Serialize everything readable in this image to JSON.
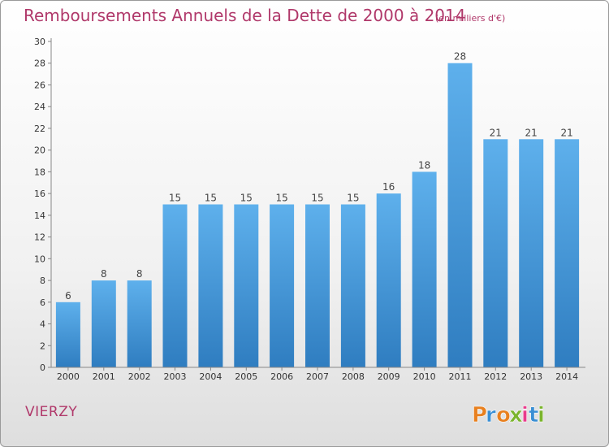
{
  "header": {
    "title": "Remboursements Annuels de la Dette de 2000 à 2014",
    "subtitle": "(en milliers d'€)"
  },
  "footer": {
    "place": "VIERZY",
    "brand": "Proxiti"
  },
  "colors": {
    "title": "#b0386a",
    "bar_top": "#5eb0ec",
    "bar_bottom": "#2f7dc0",
    "brand_letters": [
      "#e8801f",
      "#3a8fd4",
      "#e8801f",
      "#7ab42c",
      "#e83c8c",
      "#3a8fd4",
      "#7ab42c"
    ]
  },
  "chart_data": {
    "type": "bar",
    "categories": [
      "2000",
      "2001",
      "2002",
      "2003",
      "2004",
      "2005",
      "2006",
      "2007",
      "2008",
      "2009",
      "2010",
      "2011",
      "2012",
      "2013",
      "2014"
    ],
    "values": [
      6,
      8,
      8,
      15,
      15,
      15,
      15,
      15,
      15,
      16,
      18,
      28,
      21,
      21,
      21
    ],
    "data_labels": [
      "6",
      "8",
      "8",
      "15",
      "15",
      "15",
      "15",
      "15",
      "15",
      "16",
      "18",
      "28",
      "21",
      "21",
      "21"
    ],
    "ylim": [
      0,
      30
    ],
    "yticks": [
      0,
      2,
      4,
      6,
      8,
      10,
      12,
      14,
      16,
      18,
      20,
      22,
      24,
      26,
      28,
      30
    ],
    "ytick_labels": [
      "0",
      "2",
      "4",
      "6",
      "8",
      "10",
      "12",
      "14",
      "16",
      "18",
      "20",
      "22",
      "24",
      "26",
      "28",
      "30"
    ],
    "grid": false,
    "legend": "none"
  }
}
